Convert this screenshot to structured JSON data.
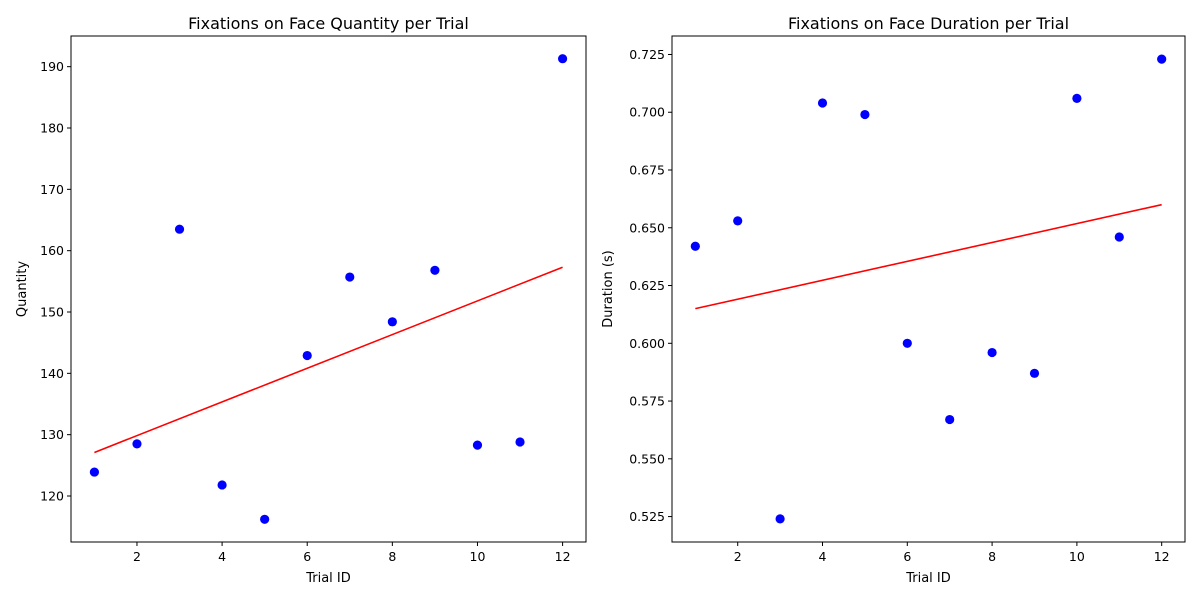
{
  "chart_data": [
    {
      "type": "scatter",
      "title": "Fixations on Face Quantity per Trial",
      "xlabel": "Trial ID",
      "ylabel": "Quantity",
      "xlim": [
        0.45,
        12.55
      ],
      "ylim": [
        112.5,
        195
      ],
      "x_ticks": [
        2,
        4,
        6,
        8,
        10,
        12
      ],
      "x_tick_labels": [
        "2",
        "4",
        "6",
        "8",
        "10",
        "12"
      ],
      "y_ticks": [
        120,
        130,
        140,
        150,
        160,
        170,
        180,
        190
      ],
      "y_tick_labels": [
        "120",
        "130",
        "140",
        "150",
        "160",
        "170",
        "180",
        "190"
      ],
      "grid": false,
      "series": [
        {
          "type": "scatter",
          "color": "#0000ff",
          "x": [
            1,
            2,
            3,
            4,
            5,
            6,
            7,
            8,
            9,
            10,
            11,
            12
          ],
          "y": [
            123.9,
            128.5,
            163.5,
            121.8,
            116.2,
            142.9,
            155.7,
            148.4,
            156.8,
            128.3,
            128.8,
            191.3
          ]
        },
        {
          "type": "line",
          "color": "#ff0000",
          "x": [
            1,
            12
          ],
          "y": [
            127.1,
            157.3
          ]
        }
      ]
    },
    {
      "type": "scatter",
      "title": "Fixations on Face Duration per Trial",
      "xlabel": "Trial ID",
      "ylabel": "Duration (s)",
      "xlim": [
        0.45,
        12.55
      ],
      "ylim": [
        0.514,
        0.733
      ],
      "x_ticks": [
        2,
        4,
        6,
        8,
        10,
        12
      ],
      "x_tick_labels": [
        "2",
        "4",
        "6",
        "8",
        "10",
        "12"
      ],
      "y_ticks": [
        0.525,
        0.55,
        0.575,
        0.6,
        0.625,
        0.65,
        0.675,
        0.7,
        0.725
      ],
      "y_tick_labels": [
        "0.525",
        "0.550",
        "0.575",
        "0.600",
        "0.625",
        "0.650",
        "0.675",
        "0.700",
        "0.725"
      ],
      "grid": false,
      "series": [
        {
          "type": "scatter",
          "color": "#0000ff",
          "x": [
            1,
            2,
            3,
            4,
            5,
            6,
            7,
            8,
            9,
            10,
            11,
            12
          ],
          "y": [
            0.642,
            0.653,
            0.524,
            0.704,
            0.699,
            0.6,
            0.567,
            0.596,
            0.587,
            0.706,
            0.646,
            0.723
          ]
        },
        {
          "type": "line",
          "color": "#ff0000",
          "x": [
            1,
            12
          ],
          "y": [
            0.615,
            0.66
          ]
        }
      ]
    }
  ]
}
